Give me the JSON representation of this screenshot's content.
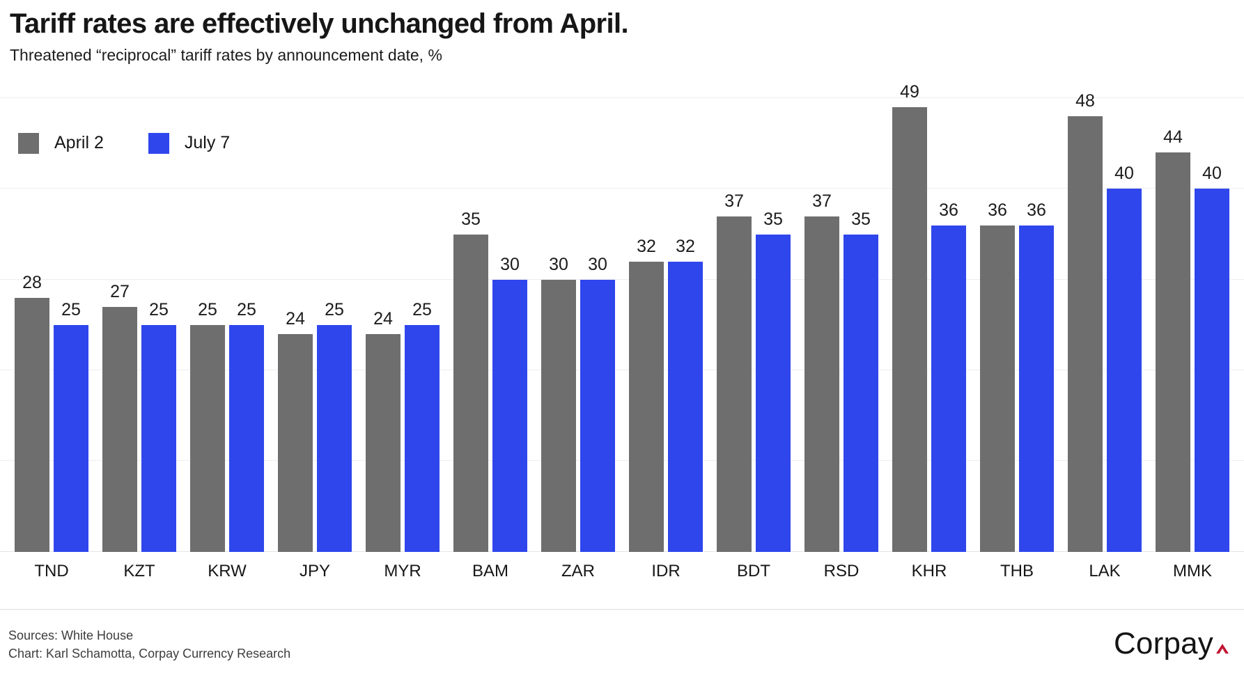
{
  "header": {
    "title": "Tariff rates are effectively unchanged from April.",
    "subtitle": "Threatened “reciprocal” tariff rates by announcement date, %"
  },
  "legend": [
    {
      "label": "April 2",
      "color": "#6E6E6E"
    },
    {
      "label": "July 7",
      "color": "#2F46EC"
    }
  ],
  "chart_data": {
    "type": "bar",
    "title": "Tariff rates are effectively unchanged from April.",
    "subtitle": "Threatened “reciprocal” tariff rates by announcement date, %",
    "xlabel": "",
    "ylabel": "%",
    "categories": [
      "TND",
      "KZT",
      "KRW",
      "JPY",
      "MYR",
      "BAM",
      "ZAR",
      "IDR",
      "BDT",
      "RSD",
      "KHR",
      "THB",
      "LAK",
      "MMK"
    ],
    "series": [
      {
        "name": "April 2",
        "color": "#6E6E6E",
        "values": [
          28,
          27,
          25,
          24,
          24,
          35,
          30,
          32,
          37,
          37,
          49,
          36,
          48,
          44
        ]
      },
      {
        "name": "July 7",
        "color": "#2F46EC",
        "values": [
          25,
          25,
          25,
          25,
          25,
          30,
          30,
          32,
          35,
          35,
          36,
          36,
          40,
          40
        ]
      }
    ],
    "ylim": [
      0,
      52
    ],
    "gridlines": [
      10,
      20,
      30,
      40,
      50
    ],
    "grid": "horizontal-faint",
    "value_labels": true,
    "legend_position": "top-left-inside-plot"
  },
  "footer": {
    "sources": "Sources: White House",
    "credit": "Chart: Karl Schamotta, Corpay Currency Research",
    "logo_text": "Corpay",
    "logo_caret_color": "#C31432"
  }
}
